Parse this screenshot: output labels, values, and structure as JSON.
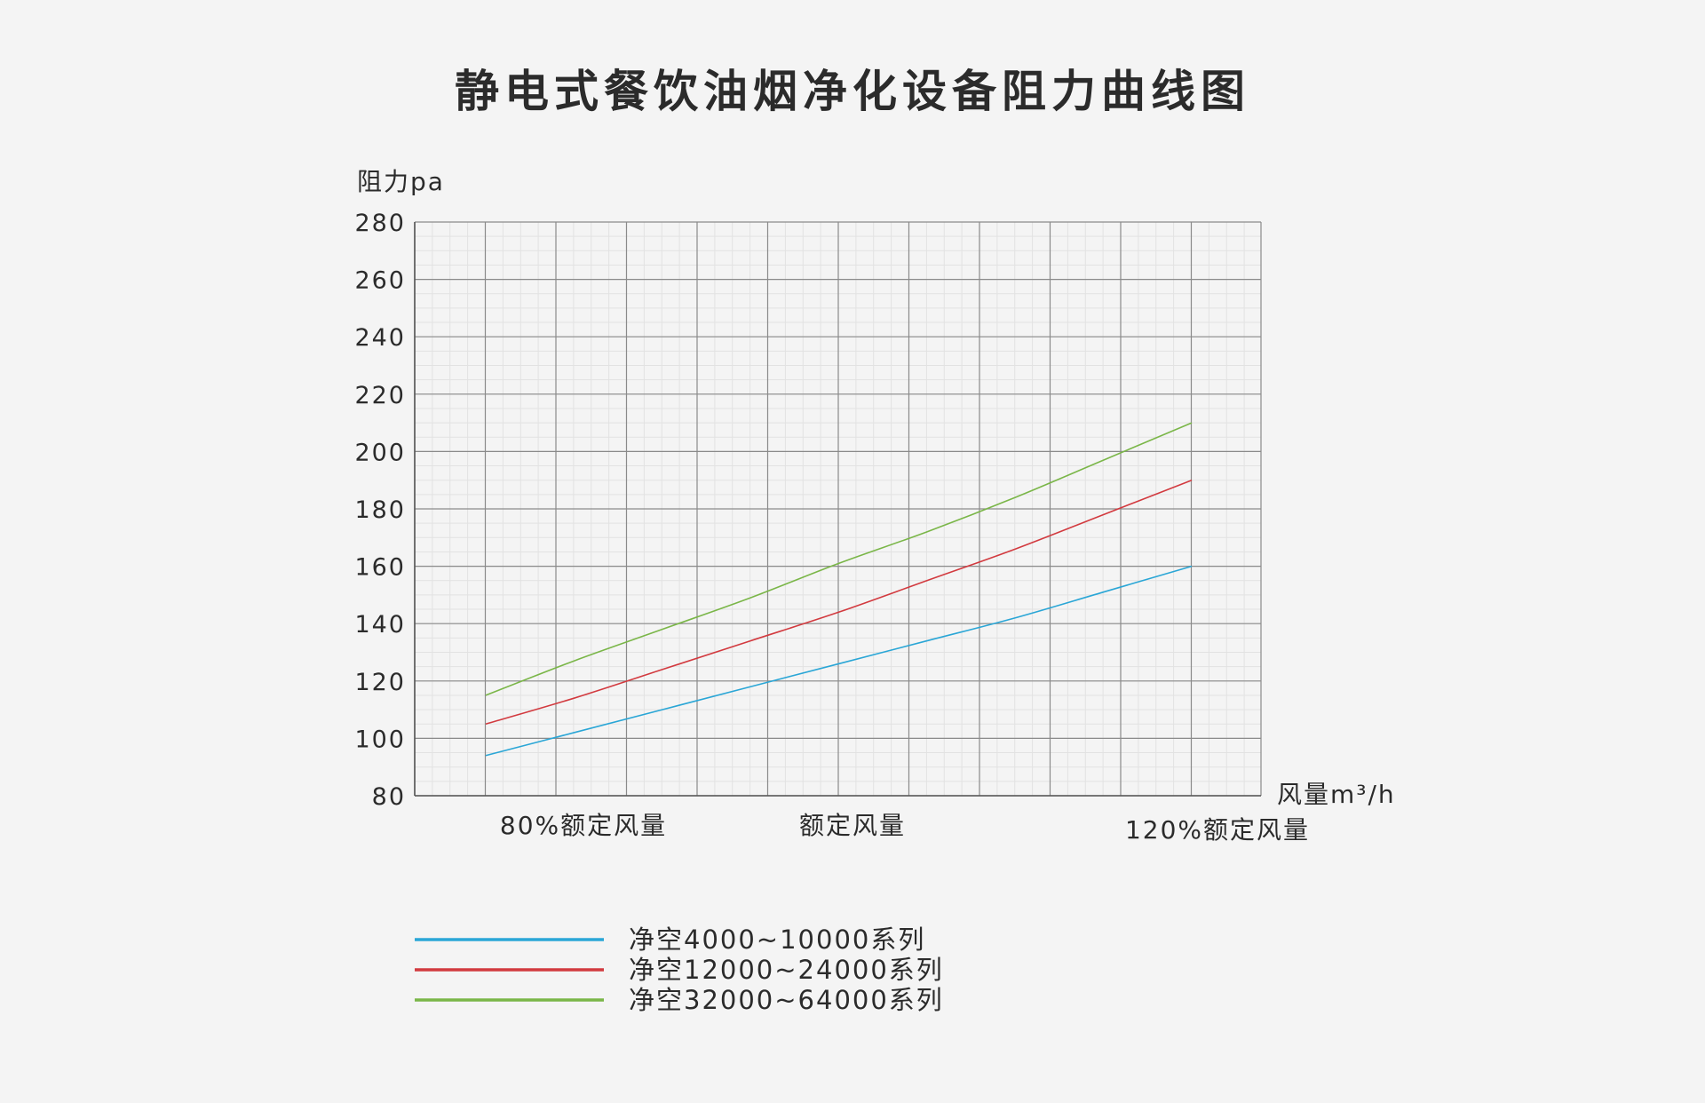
{
  "chart_data": {
    "type": "line",
    "title": "静电式餐饮油烟净化设备阻力曲线图",
    "ylabel": "阻力pa",
    "xlabel": "风量m³/h",
    "ylim": [
      80,
      280
    ],
    "yticks": [
      80,
      100,
      120,
      140,
      160,
      180,
      200,
      220,
      240,
      260,
      280
    ],
    "x_categories": [
      "80%额定风量",
      "额定风量",
      "120%额定风量"
    ],
    "x_range": [
      80,
      120
    ],
    "grid": true,
    "legend_position": "bottom-left",
    "series": [
      {
        "name": "净空4000~10000系列",
        "color": "#2aa6d6",
        "x": [
          80,
          85,
          90,
          95,
          100,
          105,
          110,
          115,
          120
        ],
        "y": [
          94,
          102,
          110,
          118,
          126,
          134,
          142,
          151,
          160
        ]
      },
      {
        "name": "净空12000~24000系列",
        "color": "#d23a3f",
        "x": [
          80,
          85,
          90,
          95,
          100,
          105,
          110,
          115,
          120
        ],
        "y": [
          105,
          114,
          124,
          134,
          144,
          155,
          166,
          178,
          190
        ]
      },
      {
        "name": "净空32000~64000系列",
        "color": "#7ab648",
        "x": [
          80,
          85,
          90,
          95,
          100,
          105,
          110,
          115,
          120
        ],
        "y": [
          115,
          127,
          138,
          149,
          161,
          172,
          184,
          197,
          210
        ]
      }
    ]
  }
}
